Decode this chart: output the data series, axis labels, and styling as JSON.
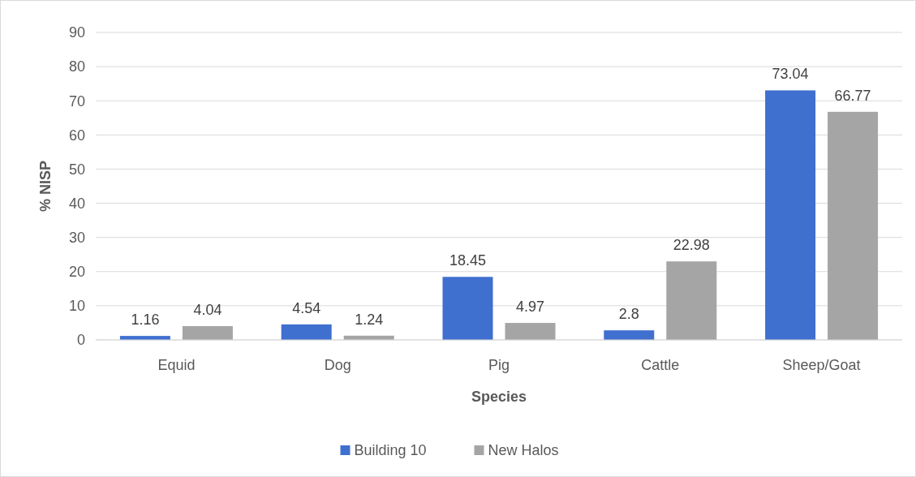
{
  "chart_data": {
    "type": "bar",
    "xlabel": "Species",
    "ylabel": "% NISP",
    "categories": [
      "Equid",
      "Dog",
      "Pig",
      "Cattle",
      "Sheep/Goat"
    ],
    "series": [
      {
        "name": "Building 10",
        "color": "#3f6fcf",
        "values": [
          1.16,
          4.54,
          18.45,
          2.8,
          73.04
        ]
      },
      {
        "name": "New Halos",
        "color": "#a5a5a5",
        "values": [
          4.04,
          1.24,
          4.97,
          22.98,
          66.77
        ]
      }
    ],
    "ylim": [
      0,
      90
    ],
    "yticks": [
      0,
      10,
      20,
      30,
      40,
      50,
      60,
      70,
      80,
      90
    ],
    "grid": "y",
    "legend": "bottom",
    "data_labels": true
  }
}
